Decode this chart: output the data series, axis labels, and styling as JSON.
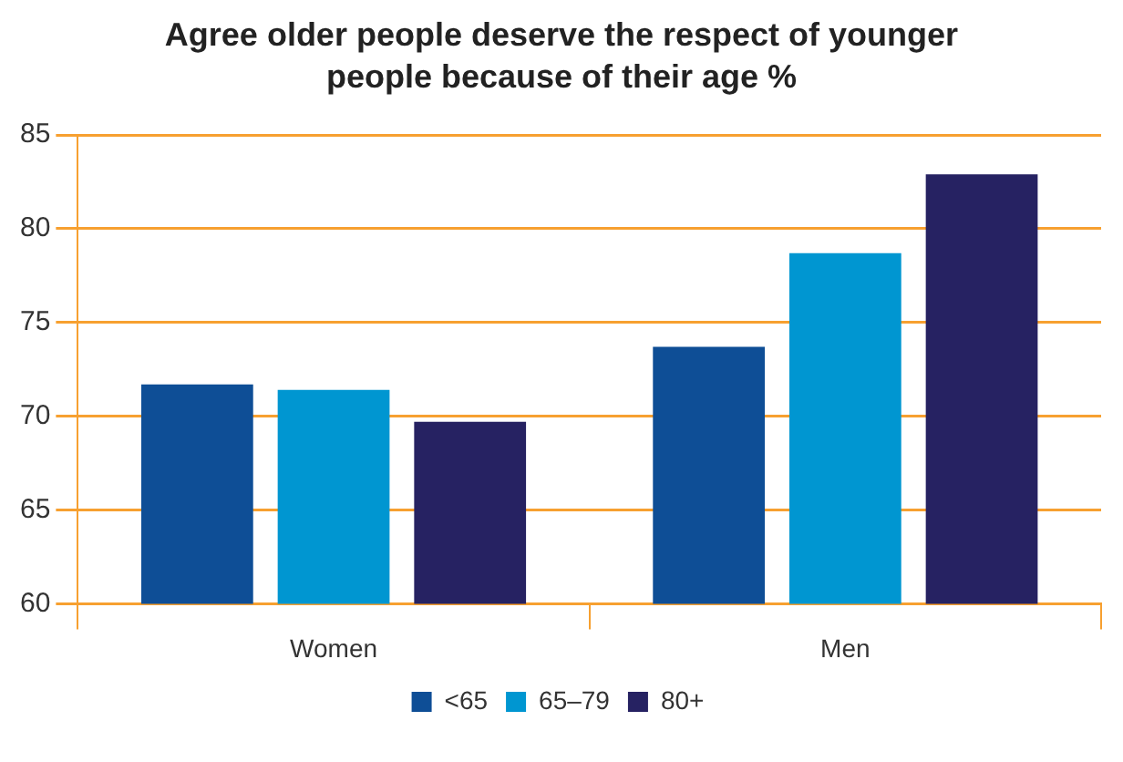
{
  "chart_data": {
    "type": "bar",
    "title": "Agree older people deserve the respect of younger people because of their age %",
    "categories": [
      "Women",
      "Men"
    ],
    "series": [
      {
        "name": "<65",
        "color": "#0e4e96",
        "values": [
          71.7,
          73.7
        ]
      },
      {
        "name": "65–79",
        "color": "#0096d1",
        "values": [
          71.4,
          78.7
        ]
      },
      {
        "name": "80+",
        "color": "#262262",
        "values": [
          69.7,
          82.9
        ]
      }
    ],
    "ylim": [
      60,
      85
    ],
    "yticks": [
      60,
      65,
      70,
      75,
      80,
      85
    ],
    "grid": "y",
    "legend": "bottom"
  }
}
